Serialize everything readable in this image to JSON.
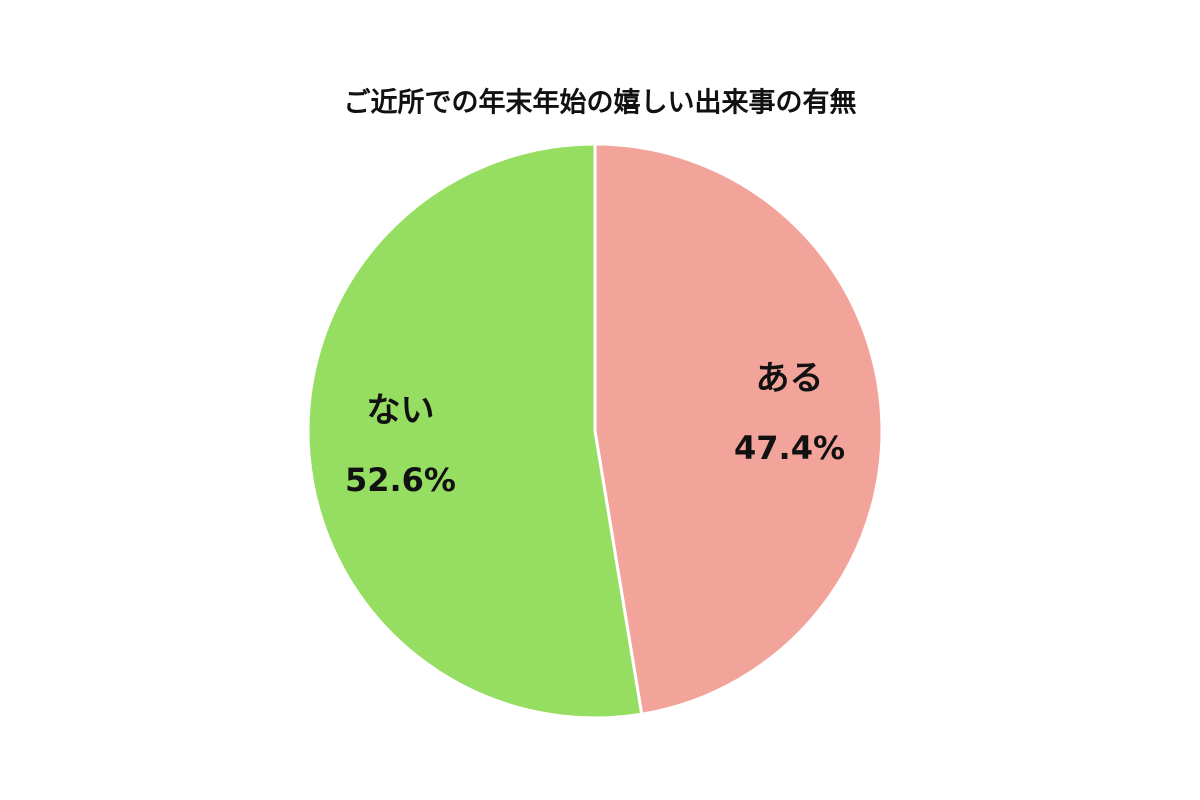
{
  "chart_data": {
    "type": "pie",
    "title": "ご近所での年末年始の嬉しい出来事の有無",
    "categories": [
      "ある",
      "ない"
    ],
    "values": [
      47.4,
      52.6
    ],
    "value_labels": [
      "47.4%",
      "52.6%"
    ],
    "colors": [
      "#f2a49a",
      "#96de62"
    ]
  }
}
